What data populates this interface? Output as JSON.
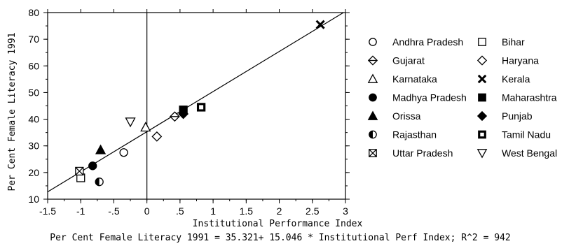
{
  "chart_data": {
    "type": "scatter",
    "xlabel": "Institutional Performance Index",
    "ylabel": "Per Cent Female Literacy 1991",
    "xlim": [
      -1.5,
      3
    ],
    "ylim": [
      10,
      80
    ],
    "x_ticks": [
      -1.5,
      -1,
      -0.5,
      0,
      0.5,
      1,
      1.5,
      2,
      2.5,
      3
    ],
    "x_tick_labels": [
      "-1.5",
      "-1",
      "-.5",
      "0",
      ".5",
      "1",
      "1.5",
      "2",
      "2.5",
      "3"
    ],
    "y_ticks": [
      10,
      20,
      30,
      40,
      50,
      60,
      70,
      80
    ],
    "y_tick_labels": [
      "10",
      "20",
      "30",
      "40",
      "50",
      "60",
      "70",
      "80"
    ],
    "reference_line_x": 0,
    "regression": {
      "intercept": 35.321,
      "slope": 15.046
    },
    "equation_text": "Per Cent Female Literacy 1991 = 35.321+ 15.046 * Institutional Perf Index; R^2 = 942",
    "legend_placement": "right",
    "series": [
      {
        "name": "Andhra Pradesh",
        "marker": "circle-open",
        "points": [
          [
            -0.35,
            27.5
          ]
        ]
      },
      {
        "name": "Bihar",
        "marker": "square-open",
        "points": [
          [
            -1.0,
            18.0
          ]
        ]
      },
      {
        "name": "Gujarat",
        "marker": "diamond-half",
        "points": [
          [
            0.42,
            41.0
          ]
        ]
      },
      {
        "name": "Haryana",
        "marker": "diamond-open",
        "points": [
          [
            0.15,
            33.5
          ]
        ]
      },
      {
        "name": "Karnataka",
        "marker": "triangle-up-open",
        "points": [
          [
            -0.02,
            37.0
          ]
        ]
      },
      {
        "name": "Kerala",
        "marker": "x",
        "points": [
          [
            2.62,
            75.5
          ]
        ]
      },
      {
        "name": "Madhya Pradesh",
        "marker": "circle-filled",
        "points": [
          [
            -0.82,
            22.5
          ]
        ]
      },
      {
        "name": "Maharashtra",
        "marker": "square-filled",
        "points": [
          [
            0.55,
            43.5
          ]
        ]
      },
      {
        "name": "Orissa",
        "marker": "triangle-up-filled",
        "points": [
          [
            -0.7,
            28.5
          ]
        ]
      },
      {
        "name": "Punjab",
        "marker": "diamond-filled",
        "points": [
          [
            0.55,
            42.0
          ]
        ]
      },
      {
        "name": "Rajasthan",
        "marker": "circle-half",
        "points": [
          [
            -0.72,
            16.5
          ]
        ]
      },
      {
        "name": "Tamil Nadu",
        "marker": "square-dot",
        "points": [
          [
            0.82,
            44.5
          ]
        ]
      },
      {
        "name": "Uttar Pradesh",
        "marker": "square-x",
        "points": [
          [
            -1.02,
            20.5
          ]
        ]
      },
      {
        "name": "West Bengal",
        "marker": "triangle-down-open",
        "points": [
          [
            -0.25,
            39.0
          ]
        ]
      }
    ]
  }
}
